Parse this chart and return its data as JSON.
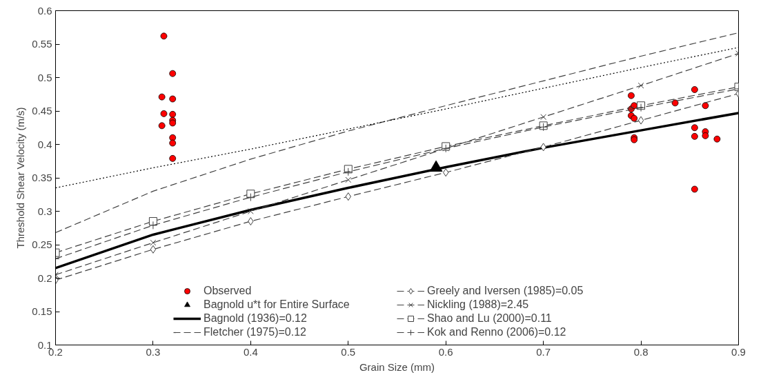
{
  "chart_data": {
    "type": "line",
    "xlabel": "Grain Size (mm)",
    "ylabel": "Threshold Shear Velocity (m/s)",
    "xlim": [
      0.2,
      0.9
    ],
    "ylim": [
      0.1,
      0.6
    ],
    "xticks": [
      0.2,
      0.3,
      0.4,
      0.5,
      0.6,
      0.7,
      0.8,
      0.9
    ],
    "yticks": [
      0.1,
      0.15,
      0.2,
      0.25,
      0.3,
      0.35,
      0.4,
      0.45,
      0.5,
      0.55,
      0.6
    ],
    "grid": false,
    "legend": "bottom",
    "series": [
      {
        "name": "Observed",
        "type": "scatter",
        "marker": "circle",
        "color": "#ff0000",
        "x": [
          0.311,
          0.32,
          0.309,
          0.32,
          0.311,
          0.32,
          0.32,
          0.32,
          0.309,
          0.32,
          0.32,
          0.32,
          0.79,
          0.79,
          0.793,
          0.79,
          0.793,
          0.793,
          0.793,
          0.835,
          0.855,
          0.855,
          0.855,
          0.855,
          0.866,
          0.866,
          0.866,
          0.878
        ],
        "values": [
          0.562,
          0.506,
          0.471,
          0.468,
          0.446,
          0.445,
          0.436,
          0.432,
          0.428,
          0.41,
          0.402,
          0.379,
          0.473,
          0.453,
          0.458,
          0.443,
          0.439,
          0.41,
          0.407,
          0.462,
          0.482,
          0.425,
          0.412,
          0.333,
          0.458,
          0.419,
          0.413,
          0.408
        ]
      },
      {
        "name": "Bagnold u*t for Entire Surface",
        "type": "scatter",
        "marker": "triangle",
        "color": "#000000",
        "x": [
          0.59
        ],
        "values": [
          0.365
        ]
      },
      {
        "name": "Bagnold (1936)=0.12",
        "marker": "none",
        "line_style": "solid",
        "color": "#000000",
        "x": [
          0.2,
          0.3,
          0.4,
          0.5,
          0.6,
          0.7,
          0.8,
          0.9
        ],
        "values": [
          0.215,
          0.265,
          0.302,
          0.335,
          0.366,
          0.395,
          0.421,
          0.447
        ]
      },
      {
        "name": "Fletcher (1975)=0.12",
        "marker": "none",
        "line_style": "dashed",
        "color": "#404040",
        "x": [
          0.2,
          0.3,
          0.4,
          0.5,
          0.6,
          0.7,
          0.8,
          0.9
        ],
        "values": [
          0.268,
          0.33,
          0.378,
          0.42,
          0.458,
          0.495,
          0.532,
          0.567
        ]
      },
      {
        "name": "Greely and Iversen (1985)=0.05",
        "marker": "diamond",
        "line_style": "dashed",
        "color": "#404040",
        "x": [
          0.2,
          0.3,
          0.4,
          0.5,
          0.6,
          0.7,
          0.8,
          0.9
        ],
        "values": [
          0.197,
          0.243,
          0.285,
          0.322,
          0.358,
          0.396,
          0.436,
          0.476
        ]
      },
      {
        "name": "Nickling (1988)=2.45",
        "marker": "cross",
        "line_style": "dashed",
        "color": "#404040",
        "x": [
          0.2,
          0.3,
          0.4,
          0.5,
          0.6,
          0.7,
          0.8,
          0.9
        ],
        "values": [
          0.205,
          0.253,
          0.3,
          0.347,
          0.394,
          0.441,
          0.488,
          0.536
        ]
      },
      {
        "name": "Shao and Lu (2000)=0.11",
        "marker": "square",
        "line_style": "dashed",
        "color": "#404040",
        "x": [
          0.2,
          0.3,
          0.4,
          0.5,
          0.6,
          0.7,
          0.8,
          0.9
        ],
        "values": [
          0.238,
          0.285,
          0.326,
          0.363,
          0.397,
          0.428,
          0.458,
          0.486
        ]
      },
      {
        "name": "Kok and Renno (2006)=0.12",
        "marker": "plus",
        "line_style": "dashed",
        "color": "#404040",
        "x": [
          0.2,
          0.3,
          0.4,
          0.5,
          0.6,
          0.7,
          0.8,
          0.9
        ],
        "values": [
          0.229,
          0.279,
          0.321,
          0.359,
          0.394,
          0.426,
          0.455,
          0.483
        ]
      },
      {
        "marker": "none",
        "line_style": "dotted",
        "color": "#000000",
        "x": [
          0.2,
          0.3,
          0.4,
          0.5,
          0.6,
          0.7,
          0.8,
          0.9
        ],
        "values": [
          0.335,
          0.365,
          0.393,
          0.423,
          0.453,
          0.484,
          0.515,
          0.545
        ]
      }
    ]
  }
}
